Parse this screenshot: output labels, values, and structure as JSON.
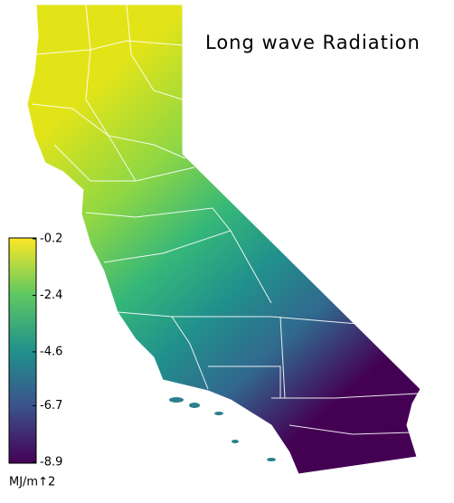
{
  "title": "Long wave Radiation",
  "colorbar": {
    "ylim": [
      -8.9,
      -0.2
    ],
    "ticks": [
      -0.2,
      -2.4,
      -4.6,
      -6.7,
      -8.9
    ],
    "label": "MJ/m↑2"
  }
}
